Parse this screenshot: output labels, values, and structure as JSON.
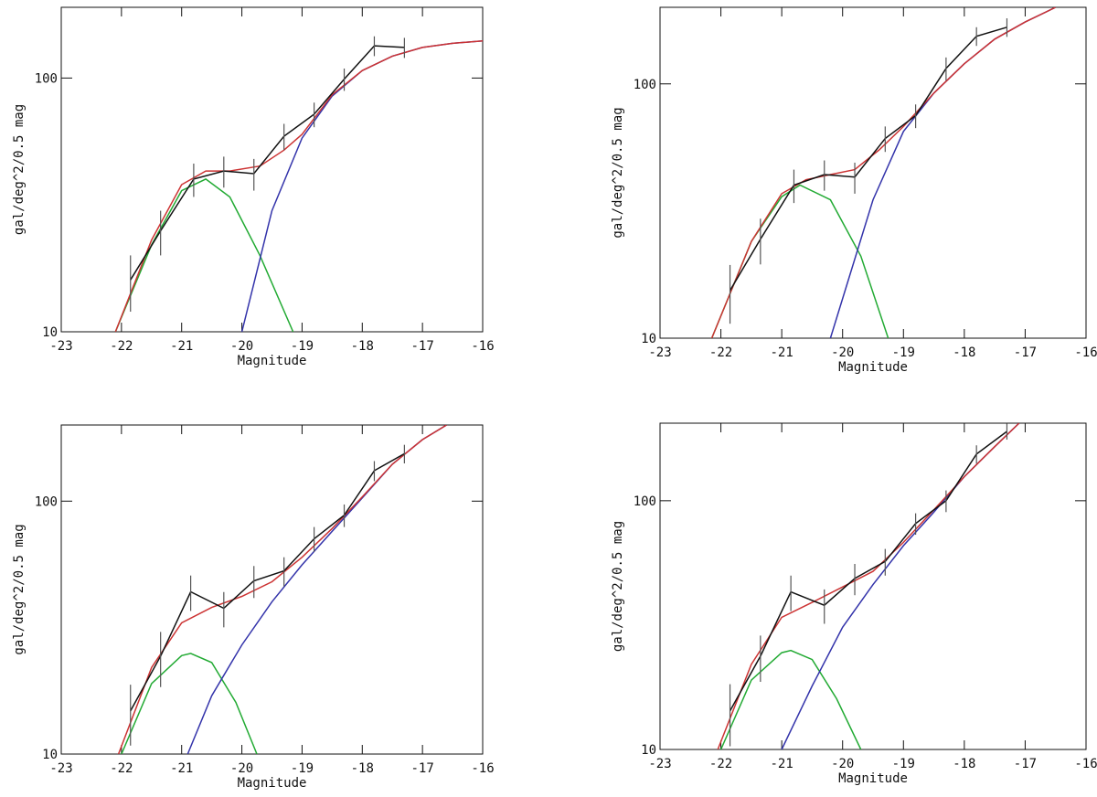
{
  "chart_data": [
    {
      "type": "line",
      "xlabel": "Magnitude",
      "ylabel": "gal/deg^2/0.5 mag",
      "xlim": [
        -23,
        -16
      ],
      "ylim": [
        10,
        190
      ],
      "yscale": "log",
      "xticks": [
        -23,
        -22,
        -21,
        -20,
        -19,
        -18,
        -17,
        -16
      ],
      "yticks": [
        10,
        100
      ],
      "series": [
        {
          "color": "#22aa33",
          "x": [
            -22.1,
            -21.5,
            -21,
            -20.6,
            -20.2,
            -19.7,
            -19.15
          ],
          "values": [
            10,
            22,
            36,
            40,
            34,
            20,
            10
          ]
        },
        {
          "color": "#3333aa",
          "x": [
            -20.0,
            -19.5,
            -19,
            -18.5,
            -18,
            -17.5,
            -17,
            -16.5,
            -16
          ],
          "values": [
            10,
            30,
            58,
            85,
            107,
            122,
            132,
            137,
            140
          ]
        },
        {
          "color": "#cc3333",
          "x": [
            -22.1,
            -21.5,
            -21,
            -20.6,
            -20.2,
            -19.7,
            -19.3,
            -19,
            -18.5,
            -18,
            -17.5,
            -17,
            -16.5,
            -16
          ],
          "values": [
            10,
            23,
            38,
            43,
            43,
            45,
            52,
            60,
            86,
            107,
            122,
            132,
            137,
            140
          ]
        },
        {
          "color": "#111111",
          "x": [
            -21.85,
            -21.35,
            -20.8,
            -20.3,
            -19.8,
            -19.3,
            -18.8,
            -18.3,
            -17.8,
            -17.3
          ],
          "values": [
            16,
            25,
            40,
            43,
            42,
            59,
            72,
            99,
            134,
            132
          ],
          "errors": [
            4,
            5,
            6,
            6,
            6,
            7,
            8,
            10,
            12,
            12
          ]
        }
      ]
    },
    {
      "type": "line",
      "xlabel": "Magnitude",
      "ylabel": "gal/deg^2/0.5 mag",
      "xlim": [
        -23,
        -16
      ],
      "ylim": [
        10,
        200
      ],
      "yscale": "log",
      "xticks": [
        -23,
        -22,
        -21,
        -20,
        -19,
        -18,
        -17,
        -16
      ],
      "yticks": [
        10,
        100
      ],
      "series": [
        {
          "color": "#22aa33",
          "x": [
            -22.15,
            -21.5,
            -21,
            -20.7,
            -20.2,
            -19.7,
            -19.25
          ],
          "values": [
            10,
            24,
            36,
            40,
            35,
            21,
            10
          ]
        },
        {
          "color": "#3333aa",
          "x": [
            -20.2,
            -19.5,
            -19,
            -18.5,
            -18,
            -17.5,
            -17,
            -16.5
          ],
          "values": [
            10,
            35,
            65,
            92,
            120,
            150,
            175,
            200
          ]
        },
        {
          "color": "#cc3333",
          "x": [
            -22.15,
            -21.5,
            -21,
            -20.6,
            -20.2,
            -19.8,
            -19.4,
            -19,
            -18.5,
            -18,
            -17.5,
            -17,
            -16.5
          ],
          "values": [
            10,
            24,
            37,
            42,
            44,
            46,
            55,
            68,
            92,
            120,
            150,
            175,
            200
          ]
        },
        {
          "color": "#111111",
          "x": [
            -21.85,
            -21.35,
            -20.8,
            -20.3,
            -19.8,
            -19.3,
            -18.8,
            -18.3,
            -17.8,
            -17.3
          ],
          "values": [
            15.4,
            24.5,
            40,
            44,
            43,
            61,
            75,
            115,
            154,
            167
          ],
          "errors": [
            4,
            5,
            6,
            6,
            6,
            7,
            8,
            12,
            13,
            14
          ]
        }
      ]
    },
    {
      "type": "line",
      "xlabel": "Magnitude",
      "ylabel": "gal/deg^2/0.5 mag",
      "xlim": [
        -23,
        -16
      ],
      "ylim": [
        10,
        200
      ],
      "yscale": "log",
      "xticks": [
        -23,
        -22,
        -21,
        -20,
        -19,
        -18,
        -17,
        -16
      ],
      "yticks": [
        10,
        100
      ],
      "series": [
        {
          "color": "#22aa33",
          "x": [
            -22.0,
            -21.5,
            -21,
            -20.85,
            -20.5,
            -20.1,
            -19.75
          ],
          "values": [
            10,
            19,
            24.5,
            25,
            23,
            16,
            10
          ]
        },
        {
          "color": "#3333aa",
          "x": [
            -20.9,
            -20.5,
            -20,
            -19.5,
            -19,
            -18.5,
            -18,
            -17.5,
            -17,
            -16.6
          ],
          "values": [
            10,
            17,
            27,
            40,
            56,
            76,
            103,
            140,
            175,
            200
          ]
        },
        {
          "color": "#cc3333",
          "x": [
            -22.05,
            -21.5,
            -21,
            -20.5,
            -20,
            -19.5,
            -19,
            -18.5,
            -18,
            -17.5,
            -17,
            -16.6
          ],
          "values": [
            10,
            22,
            33,
            38,
            42,
            48,
            60,
            78,
            104,
            140,
            175,
            200
          ]
        },
        {
          "color": "#111111",
          "x": [
            -21.85,
            -21.35,
            -20.85,
            -20.3,
            -19.8,
            -19.3,
            -18.8,
            -18.3,
            -17.8,
            -17.3
          ],
          "values": [
            14.8,
            24.4,
            43.8,
            37.7,
            48.4,
            53,
            71,
            88,
            132,
            154
          ],
          "errors": [
            4,
            6,
            7,
            6,
            7,
            7,
            8,
            9,
            12,
            13
          ]
        }
      ]
    },
    {
      "type": "line",
      "xlabel": "Magnitude",
      "ylabel": "gal/deg^2/0.5 mag",
      "xlim": [
        -23,
        -16
      ],
      "ylim": [
        10,
        205
      ],
      "yscale": "log",
      "xticks": [
        -23,
        -22,
        -21,
        -20,
        -19,
        -18,
        -17,
        -16
      ],
      "yticks": [
        10,
        100
      ],
      "series": [
        {
          "color": "#22aa33",
          "x": [
            -22.0,
            -21.5,
            -21,
            -20.85,
            -20.5,
            -20.1,
            -19.7
          ],
          "values": [
            10,
            19,
            24.5,
            25,
            23,
            16,
            10
          ]
        },
        {
          "color": "#3333aa",
          "x": [
            -21.0,
            -20.5,
            -20,
            -19.5,
            -19,
            -18.5,
            -18,
            -17.5,
            -17.1
          ],
          "values": [
            10,
            18,
            31,
            46,
            66,
            90,
            125,
            165,
            205
          ]
        },
        {
          "color": "#cc3333",
          "x": [
            -22.05,
            -21.5,
            -21,
            -20.5,
            -20,
            -19.5,
            -19,
            -18.5,
            -18,
            -17.5,
            -17.1
          ],
          "values": [
            10,
            22,
            34,
            39,
            45,
            52,
            68,
            92,
            125,
            165,
            205
          ]
        },
        {
          "color": "#111111",
          "x": [
            -21.85,
            -21.35,
            -20.85,
            -20.3,
            -19.8,
            -19.3,
            -18.8,
            -18.3,
            -17.8,
            -17.3
          ],
          "values": [
            14.3,
            23.7,
            43,
            38,
            48.7,
            57,
            81,
            100,
            154,
            190
          ],
          "errors": [
            4,
            5,
            7,
            6,
            7,
            7,
            8,
            10,
            13,
            14
          ]
        }
      ]
    }
  ]
}
